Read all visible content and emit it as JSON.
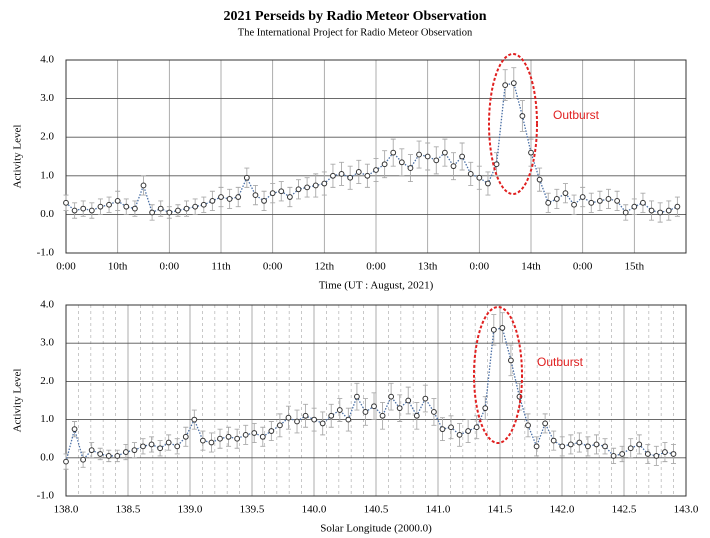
{
  "chart_data": [
    {
      "type": "line",
      "title": "2021 Perseids by Radio Meteor Observation",
      "subtitle": "The International Project for Radio Meteor Observation",
      "x_label": "Time (UT : August, 2021)",
      "y_label": "Activity Level",
      "annotation": "Outburst",
      "xlim": [
        0,
        144
      ],
      "xticks": [
        {
          "value": 0,
          "label": "0:00"
        },
        {
          "value": 12,
          "label": "10th"
        },
        {
          "value": 24,
          "label": "0:00"
        },
        {
          "value": 36,
          "label": "11th"
        },
        {
          "value": 48,
          "label": "0:00"
        },
        {
          "value": 60,
          "label": "12th"
        },
        {
          "value": 72,
          "label": "0:00"
        },
        {
          "value": 84,
          "label": "13th"
        },
        {
          "value": 96,
          "label": "0:00"
        },
        {
          "value": 108,
          "label": "14th"
        },
        {
          "value": 120,
          "label": "0:00"
        },
        {
          "value": 132,
          "label": "15th"
        }
      ],
      "ylim": [
        -1,
        4
      ],
      "yticks": [
        {
          "value": -1,
          "label": "-1.0"
        },
        {
          "value": 0,
          "label": "0.0"
        },
        {
          "value": 1,
          "label": "1.0"
        },
        {
          "value": 2,
          "label": "2.0"
        },
        {
          "value": 3,
          "label": "3.0"
        },
        {
          "value": 4,
          "label": "4.0"
        }
      ],
      "grid": true,
      "line_color": "#4a6fa5",
      "marker_color": "#333333",
      "error_color": "#aaaaaa",
      "annotation_color": "#e02020",
      "x": [
        0,
        2,
        4,
        6,
        8,
        10,
        12,
        14,
        16,
        18,
        20,
        22,
        24,
        26,
        28,
        30,
        32,
        34,
        36,
        38,
        40,
        42,
        44,
        46,
        48,
        50,
        52,
        54,
        56,
        58,
        60,
        62,
        64,
        66,
        68,
        70,
        72,
        74,
        76,
        78,
        80,
        82,
        84,
        86,
        88,
        90,
        92,
        94,
        96,
        98,
        100,
        102,
        104,
        106,
        108,
        110,
        112,
        114,
        116,
        118,
        120,
        122,
        124,
        126,
        128,
        130,
        132,
        134,
        136,
        138,
        140,
        142
      ],
      "values": [
        0.3,
        0.1,
        0.15,
        0.1,
        0.2,
        0.25,
        0.35,
        0.2,
        0.15,
        0.75,
        0.05,
        0.15,
        0.05,
        0.1,
        0.15,
        0.2,
        0.25,
        0.35,
        0.45,
        0.4,
        0.45,
        0.95,
        0.5,
        0.35,
        0.55,
        0.6,
        0.45,
        0.65,
        0.7,
        0.75,
        0.8,
        1.0,
        1.05,
        0.95,
        1.1,
        1.0,
        1.15,
        1.3,
        1.6,
        1.35,
        1.2,
        1.55,
        1.5,
        1.4,
        1.6,
        1.25,
        1.5,
        1.05,
        0.95,
        0.8,
        1.3,
        3.35,
        3.4,
        2.55,
        1.6,
        0.9,
        0.3,
        0.4,
        0.55,
        0.25,
        0.45,
        0.3,
        0.35,
        0.4,
        0.35,
        0.05,
        0.2,
        0.3,
        0.1,
        0.05,
        0.1,
        0.2
      ],
      "errors": [
        0.2,
        0.2,
        0.2,
        0.2,
        0.2,
        0.2,
        0.25,
        0.2,
        0.2,
        0.25,
        0.2,
        0.2,
        0.15,
        0.15,
        0.2,
        0.2,
        0.2,
        0.25,
        0.25,
        0.25,
        0.25,
        0.25,
        0.25,
        0.25,
        0.25,
        0.25,
        0.25,
        0.25,
        0.25,
        0.3,
        0.3,
        0.3,
        0.3,
        0.3,
        0.3,
        0.3,
        0.3,
        0.35,
        0.35,
        0.35,
        0.35,
        0.35,
        0.35,
        0.35,
        0.35,
        0.35,
        0.35,
        0.3,
        0.3,
        0.3,
        0.3,
        0.4,
        0.4,
        0.4,
        0.35,
        0.3,
        0.25,
        0.25,
        0.25,
        0.25,
        0.25,
        0.25,
        0.25,
        0.25,
        0.25,
        0.2,
        0.2,
        0.25,
        0.25,
        0.25,
        0.25,
        0.25
      ]
    },
    {
      "type": "line",
      "x_label": "Solar Longitude  (2000.0)",
      "y_label": "Activity Level",
      "annotation": "Outburst",
      "xlim": [
        138,
        143
      ],
      "xticks": [
        {
          "value": 138,
          "label": "138.0"
        },
        138.5,
        {
          "value": 139,
          "label": "139.0"
        },
        139.5,
        {
          "value": 140,
          "label": "140.0"
        },
        140.5,
        {
          "value": 141,
          "label": "141.0"
        },
        141.5,
        {
          "value": 142,
          "label": "142.0"
        },
        142.5,
        {
          "value": 143,
          "label": "143.0"
        }
      ],
      "xminorticks": [
        138.1,
        138.2,
        138.3,
        138.4,
        138.6,
        138.7,
        138.8,
        138.9,
        139.1,
        139.2,
        139.3,
        139.4,
        139.6,
        139.7,
        139.8,
        139.9,
        140.1,
        140.2,
        140.3,
        140.4,
        140.6,
        140.7,
        140.8,
        140.9,
        141.1,
        141.2,
        141.3,
        141.4,
        141.6,
        141.7,
        141.8,
        141.9,
        142.1,
        142.2,
        142.3,
        142.4,
        142.6,
        142.7,
        142.8,
        142.9
      ],
      "ylim": [
        -1,
        4
      ],
      "yticks": [
        {
          "value": -1,
          "label": "-1.0"
        },
        {
          "value": 0,
          "label": "0.0"
        },
        {
          "value": 1,
          "label": "1.0"
        },
        {
          "value": 2,
          "label": "2.0"
        },
        {
          "value": 3,
          "label": "3.0"
        },
        {
          "value": 4,
          "label": "4.0"
        }
      ],
      "grid": true,
      "line_color": "#4a6fa5",
      "marker_color": "#333333",
      "error_color": "#aaaaaa",
      "annotation_color": "#e02020",
      "x": [
        138,
        138.069,
        138.138,
        138.207,
        138.276,
        138.345,
        138.414,
        138.483,
        138.552,
        138.621,
        138.69,
        138.759,
        138.828,
        138.897,
        138.966,
        139.035,
        139.104,
        139.173,
        139.242,
        139.311,
        139.38,
        139.449,
        139.518,
        139.587,
        139.656,
        139.725,
        139.794,
        139.863,
        139.932,
        140.001,
        140.07,
        140.139,
        140.208,
        140.277,
        140.346,
        140.415,
        140.484,
        140.553,
        140.622,
        140.691,
        140.76,
        140.829,
        140.898,
        140.967,
        141.036,
        141.105,
        141.174,
        141.243,
        141.312,
        141.381,
        141.45,
        141.519,
        141.588,
        141.657,
        141.726,
        141.795,
        141.864,
        141.933,
        142.002,
        142.071,
        142.14,
        142.209,
        142.278,
        142.347,
        142.416,
        142.485,
        142.554,
        142.623,
        142.692,
        142.761,
        142.83,
        142.899
      ],
      "values": [
        -0.1,
        0.75,
        -0.05,
        0.2,
        0.1,
        0.05,
        0.05,
        0.15,
        0.2,
        0.3,
        0.35,
        0.25,
        0.4,
        0.3,
        0.55,
        1.0,
        0.45,
        0.4,
        0.5,
        0.55,
        0.5,
        0.6,
        0.65,
        0.55,
        0.7,
        0.85,
        1.05,
        0.95,
        1.1,
        1.0,
        0.9,
        1.1,
        1.25,
        1.0,
        1.6,
        1.2,
        1.35,
        1.1,
        1.6,
        1.3,
        1.5,
        1.1,
        1.55,
        1.2,
        0.75,
        0.8,
        0.6,
        0.7,
        0.8,
        1.3,
        3.35,
        3.4,
        2.55,
        1.6,
        0.85,
        0.3,
        0.9,
        0.45,
        0.3,
        0.35,
        0.4,
        0.3,
        0.35,
        0.3,
        0.05,
        0.1,
        0.25,
        0.35,
        0.1,
        0.05,
        0.15,
        0.1
      ],
      "errors": [
        0.2,
        0.2,
        0.2,
        0.2,
        0.15,
        0.15,
        0.15,
        0.2,
        0.2,
        0.2,
        0.2,
        0.2,
        0.2,
        0.2,
        0.25,
        0.25,
        0.25,
        0.25,
        0.25,
        0.25,
        0.25,
        0.25,
        0.25,
        0.25,
        0.25,
        0.3,
        0.3,
        0.3,
        0.3,
        0.3,
        0.3,
        0.3,
        0.3,
        0.3,
        0.35,
        0.35,
        0.35,
        0.35,
        0.35,
        0.35,
        0.35,
        0.35,
        0.35,
        0.35,
        0.3,
        0.3,
        0.3,
        0.3,
        0.3,
        0.3,
        0.4,
        0.4,
        0.4,
        0.35,
        0.3,
        0.25,
        0.25,
        0.25,
        0.25,
        0.25,
        0.25,
        0.25,
        0.25,
        0.2,
        0.2,
        0.2,
        0.25,
        0.25,
        0.25,
        0.25,
        0.25,
        0.25
      ]
    }
  ]
}
